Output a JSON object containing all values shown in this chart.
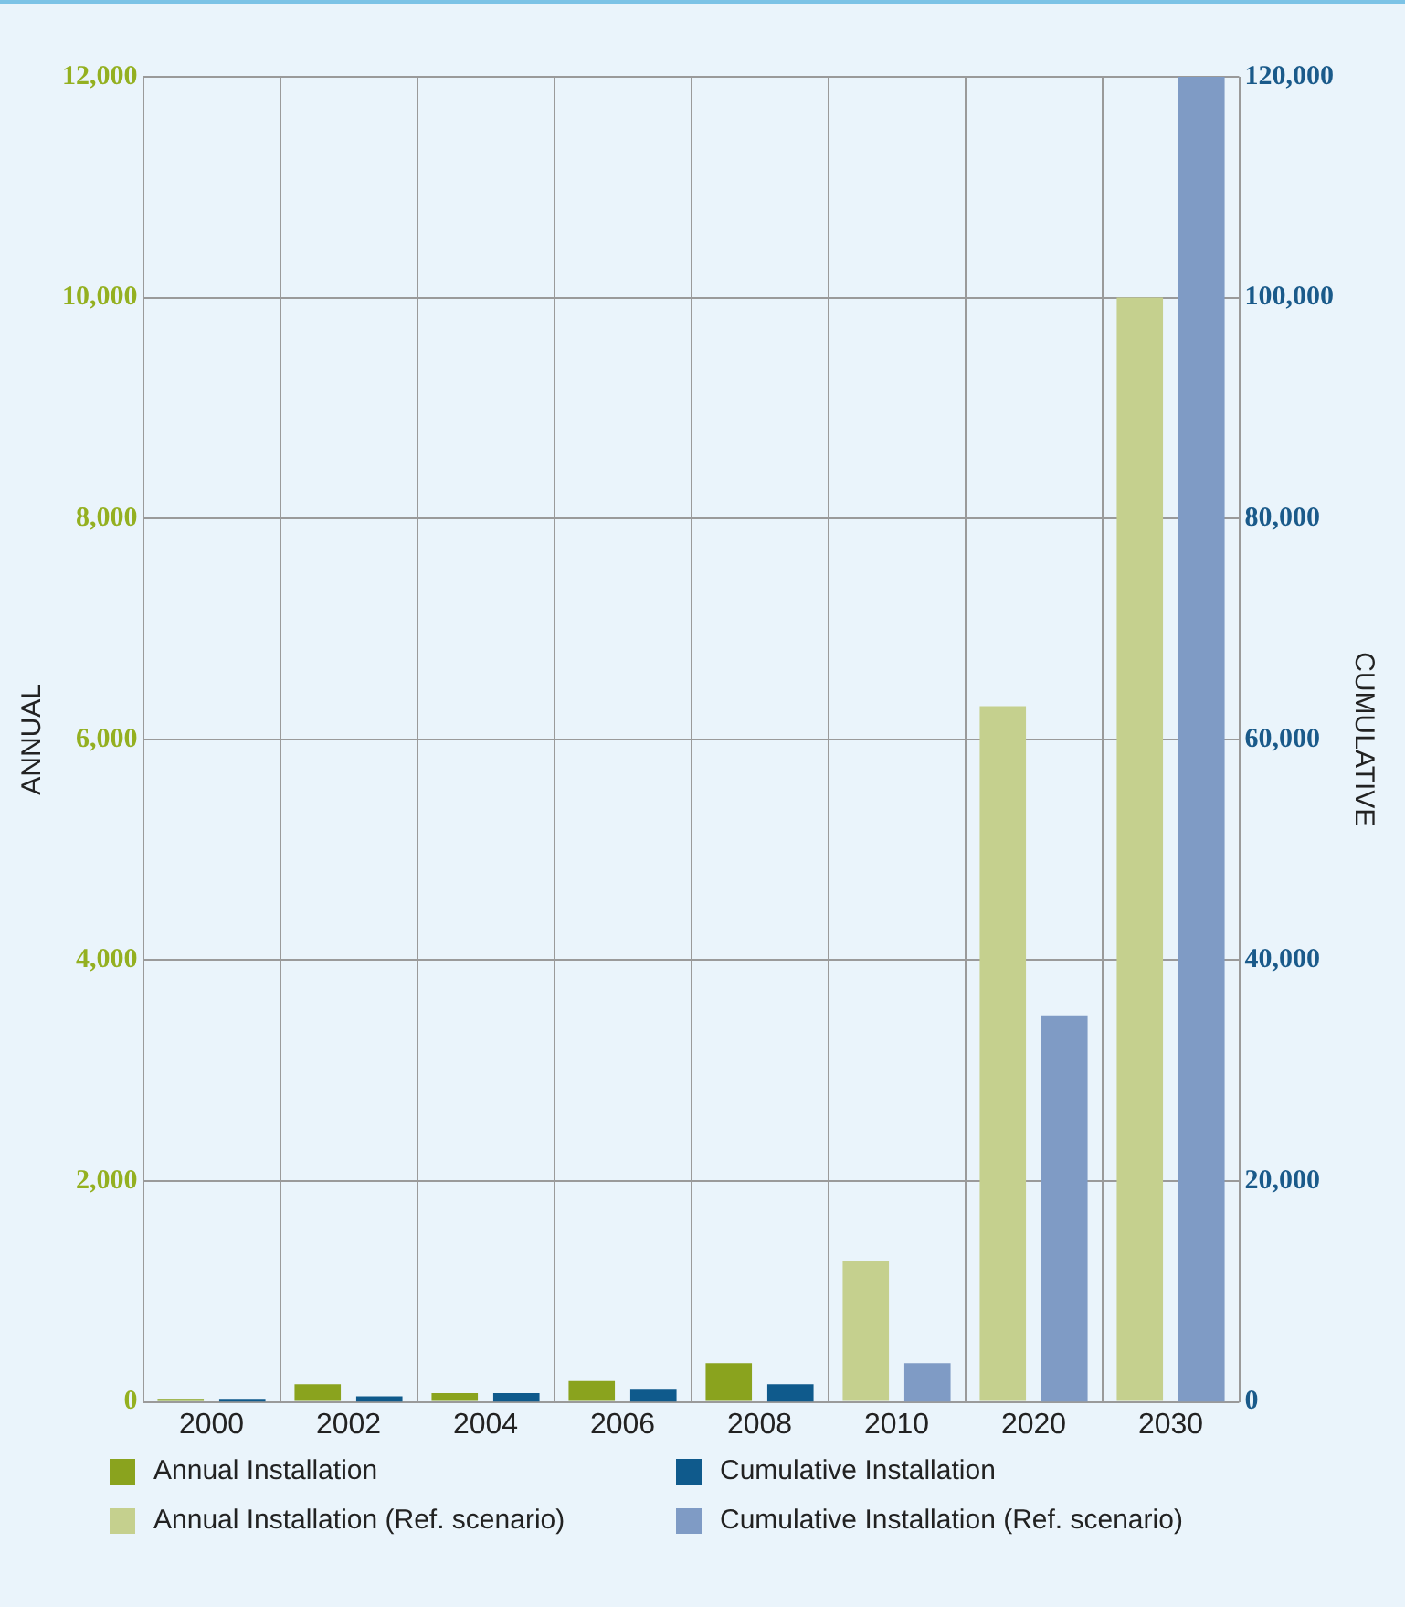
{
  "chart_data": {
    "type": "bar",
    "ylabel": "ANNUAL",
    "y2label": "CUMULATIVE",
    "categories": [
      "2000",
      "2002",
      "2004",
      "2006",
      "2008",
      "2010",
      "2020",
      "2030"
    ],
    "series": [
      {
        "name": "Annual Installation",
        "color": "#8aa31e",
        "values": [
          20,
          160,
          80,
          190,
          350,
          null,
          null,
          null
        ]
      },
      {
        "name": "Annual Installation (Ref. scenario)",
        "color": "#c5d08e",
        "values": [
          null,
          null,
          null,
          null,
          null,
          1280,
          6300,
          10000
        ]
      },
      {
        "name": "Cumulative Installation",
        "color": "#0f5a8c",
        "axis": "y2",
        "values": [
          200,
          500,
          800,
          1100,
          1600,
          null,
          null,
          null
        ]
      },
      {
        "name": "Cumulative Installation (Ref. scenario)",
        "color": "#7f9bc5",
        "axis": "y2",
        "values": [
          null,
          null,
          null,
          null,
          null,
          3500,
          35000,
          120000
        ]
      }
    ],
    "ylim": [
      0,
      12000
    ],
    "yticks": [
      {
        "value": 0,
        "label": "0"
      },
      {
        "value": 2000,
        "label": "2,000"
      },
      {
        "value": 4000,
        "label": "4,000"
      },
      {
        "value": 6000,
        "label": "6,000"
      },
      {
        "value": 8000,
        "label": "8,000"
      },
      {
        "value": 10000,
        "label": "10,000"
      },
      {
        "value": 12000,
        "label": "12,000"
      }
    ],
    "y2lim": [
      0,
      120000
    ],
    "y2ticks": [
      {
        "value": 0,
        "label": "0"
      },
      {
        "value": 20000,
        "label": "20,000"
      },
      {
        "value": 40000,
        "label": "40,000"
      },
      {
        "value": 60000,
        "label": "60,000"
      },
      {
        "value": 80000,
        "label": "80,000"
      },
      {
        "value": 100000,
        "label": "100,000"
      },
      {
        "value": 120000,
        "label": "120,000"
      }
    ],
    "grid": true,
    "legend": "bottom"
  }
}
